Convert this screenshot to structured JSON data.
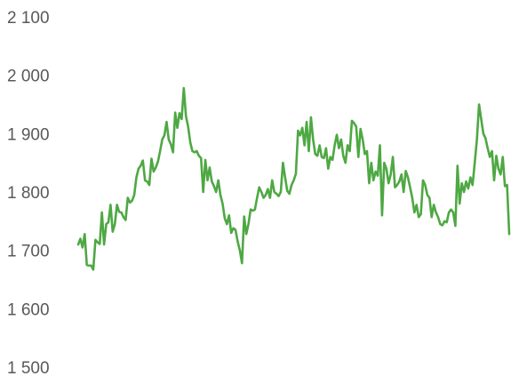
{
  "chart_data": {
    "type": "line",
    "title": "",
    "xlabel": "",
    "ylabel": "",
    "ylim": [
      1500,
      2100
    ],
    "grid": false,
    "legend": "none",
    "y_ticks": [
      2100,
      2000,
      1900,
      1800,
      1700,
      1600,
      1500
    ],
    "y_tick_labels": [
      "2 100",
      "2 000",
      "1 900",
      "1 800",
      "1 700",
      "1 600",
      "1 500"
    ],
    "series": [
      {
        "color": "#4ea843",
        "values": [
          1710,
          1720,
          1705,
          1728,
          1675,
          1674,
          1674,
          1667,
          1718,
          1714,
          1711,
          1765,
          1710,
          1745,
          1748,
          1778,
          1732,
          1745,
          1778,
          1766,
          1765,
          1757,
          1752,
          1790,
          1782,
          1785,
          1795,
          1825,
          1840,
          1845,
          1854,
          1820,
          1818,
          1812,
          1857,
          1835,
          1842,
          1852,
          1870,
          1890,
          1897,
          1920,
          1890,
          1882,
          1868,
          1936,
          1910,
          1935,
          1925,
          1978,
          1930,
          1912,
          1885,
          1870,
          1868,
          1870,
          1862,
          1858,
          1800,
          1855,
          1820,
          1842,
          1818,
          1810,
          1800,
          1820,
          1795,
          1780,
          1755,
          1745,
          1760,
          1730,
          1738,
          1735,
          1715,
          1700,
          1678,
          1758,
          1728,
          1745,
          1770,
          1768,
          1770,
          1790,
          1808,
          1800,
          1790,
          1795,
          1805,
          1790,
          1820,
          1800,
          1797,
          1793,
          1800,
          1850,
          1825,
          1802,
          1797,
          1812,
          1820,
          1831,
          1905,
          1897,
          1910,
          1880,
          1920,
          1870,
          1928,
          1890,
          1865,
          1862,
          1880,
          1860,
          1858,
          1875,
          1840,
          1860,
          1855,
          1880,
          1898,
          1875,
          1890,
          1862,
          1850,
          1880,
          1870,
          1922,
          1918,
          1912,
          1860,
          1908,
          1890,
          1865,
          1870,
          1815,
          1850,
          1820,
          1835,
          1828,
          1880,
          1760,
          1850,
          1840,
          1815,
          1830,
          1860,
          1808,
          1812,
          1818,
          1830,
          1800,
          1836,
          1825,
          1808,
          1790,
          1765,
          1778,
          1757,
          1762,
          1820,
          1812,
          1795,
          1790,
          1757,
          1778,
          1765,
          1757,
          1745,
          1743,
          1750,
          1748,
          1765,
          1770,
          1765,
          1742,
          1845,
          1780,
          1815,
          1800,
          1818,
          1806,
          1825,
          1812,
          1850,
          1890,
          1950,
          1925,
          1900,
          1892,
          1875,
          1860,
          1870,
          1820,
          1862,
          1840,
          1830,
          1860,
          1810,
          1812,
          1728
        ]
      }
    ]
  }
}
